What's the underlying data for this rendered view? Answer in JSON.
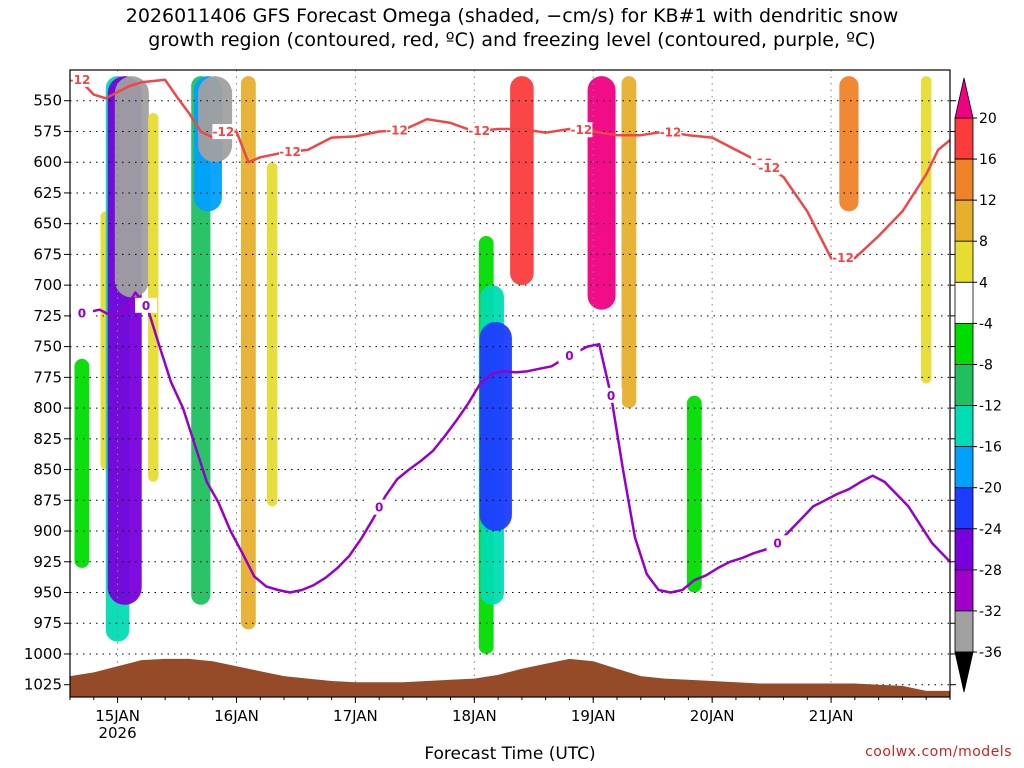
{
  "title_line1": "2026011406 GFS Forecast Omega (shaded, −cm/s) for KB#1 with dendritic snow",
  "title_line2": "growth region (contoured, red, ºC) and freezing level (contoured, purple, ºC)",
  "credit": "coolwx.com/models",
  "chart_data": {
    "type": "heatmap",
    "title": "2026011406 GFS Forecast Omega (shaded, −cm/s) for KB#1 with dendritic snow growth region (contoured, red, ºC) and freezing level (contoured, purple, ºC)",
    "xlabel": "Forecast Time (UTC)",
    "ylabel": "",
    "xlim_hours": [
      -4,
      70
    ],
    "ylim_hpa": [
      1035,
      525
    ],
    "x_ticks": [
      {
        "hour": 0,
        "label": "15JAN",
        "sub": "2026"
      },
      {
        "hour": 10,
        "label": "16JAN",
        "sub": ""
      },
      {
        "hour": 20,
        "label": "17JAN",
        "sub": ""
      },
      {
        "hour": 30,
        "label": "18JAN",
        "sub": ""
      },
      {
        "hour": 40,
        "label": "19JAN",
        "sub": ""
      },
      {
        "hour": 50,
        "label": "20JAN",
        "sub": ""
      },
      {
        "hour": 60,
        "label": "21JAN",
        "sub": ""
      }
    ],
    "y_ticks": [
      550,
      575,
      600,
      625,
      650,
      675,
      700,
      725,
      750,
      775,
      800,
      825,
      850,
      875,
      900,
      925,
      950,
      975,
      1000,
      1025
    ],
    "colorbar": {
      "levels": [
        -36,
        -32,
        -28,
        -24,
        -20,
        -16,
        -12,
        -8,
        -4,
        4,
        8,
        12,
        16,
        20
      ],
      "labels": [
        "20",
        "16",
        "12",
        "8",
        "4",
        "-4",
        "-8",
        "-12",
        "-16",
        "-20",
        "-24",
        "-28",
        "-32",
        "-36"
      ],
      "colors": [
        "#000000",
        "#a0a0a0",
        "#a000c8",
        "#7800dc",
        "#1e3cff",
        "#00a0ff",
        "#00dcb4",
        "#20c060",
        "#00dc00",
        "#ffffff",
        "#e6dc32",
        "#e6af2d",
        "#f08228",
        "#fa3c3c",
        "#f00082"
      ],
      "extend": "both"
    },
    "shaded_features": [
      {
        "hour": -3.0,
        "top": 760,
        "bottom": 930,
        "value": -8
      },
      {
        "hour": -1.0,
        "top": 640,
        "bottom": 850,
        "value": 4
      },
      {
        "hour": 0.0,
        "top": 530,
        "bottom": 990,
        "value": -16
      },
      {
        "hour": 0.6,
        "top": 530,
        "bottom": 960,
        "value": -28
      },
      {
        "hour": 1.2,
        "top": 530,
        "bottom": 710,
        "value": -36
      },
      {
        "hour": 3.0,
        "top": 560,
        "bottom": 860,
        "value": 4
      },
      {
        "hour": 7.0,
        "top": 530,
        "bottom": 960,
        "value": -12
      },
      {
        "hour": 7.6,
        "top": 530,
        "bottom": 640,
        "value": -20
      },
      {
        "hour": 8.2,
        "top": 530,
        "bottom": 600,
        "value": -36
      },
      {
        "hour": 11.0,
        "top": 530,
        "bottom": 980,
        "value": 8
      },
      {
        "hour": 13.0,
        "top": 600,
        "bottom": 880,
        "value": 4
      },
      {
        "hour": 31.0,
        "top": 660,
        "bottom": 1000,
        "value": -8
      },
      {
        "hour": 31.5,
        "top": 700,
        "bottom": 960,
        "value": -16
      },
      {
        "hour": 31.8,
        "top": 730,
        "bottom": 900,
        "value": -24
      },
      {
        "hour": 34.0,
        "top": 530,
        "bottom": 700,
        "value": 16
      },
      {
        "hour": 40.7,
        "top": 530,
        "bottom": 720,
        "value": 20
      },
      {
        "hour": 43.0,
        "top": 530,
        "bottom": 800,
        "value": 8
      },
      {
        "hour": 48.5,
        "top": 790,
        "bottom": 950,
        "value": -8
      },
      {
        "hour": 61.5,
        "top": 530,
        "bottom": 640,
        "value": 12
      },
      {
        "hour": 68.0,
        "top": 530,
        "bottom": 780,
        "value": 4
      }
    ],
    "series": [
      {
        "name": "dendritic growth region",
        "value": -12,
        "color": "#f04646",
        "x": [
          -4,
          -3.2,
          -2.0,
          -1.0,
          0.0,
          1.0,
          2.0,
          4.0,
          5.0,
          6.0,
          7.0,
          8.0,
          9.0,
          10.0,
          11.0,
          12.0,
          14.0,
          16.0,
          18.0,
          20.0,
          22.0,
          24.0,
          26.0,
          28.0,
          30.0,
          32.0,
          34.0,
          36.0,
          38.0,
          40.0,
          42.0,
          44.0,
          46.0,
          48.0,
          50.0,
          52.0,
          54.0,
          56.0,
          58.0,
          60.0,
          62.0,
          64.0,
          66.0,
          68.0,
          69.0,
          70.0
        ],
        "y": [
          533,
          533,
          545,
          548,
          543,
          538,
          535,
          533,
          547,
          560,
          575,
          580,
          575,
          575,
          600,
          596,
          592,
          590,
          580,
          579,
          575,
          574,
          565,
          568,
          575,
          573,
          573,
          576,
          573,
          575,
          578,
          578,
          575,
          578,
          580,
          590,
          600,
          612,
          640,
          678,
          678,
          660,
          640,
          610,
          590,
          582
        ],
        "labels_at_hours": [
          -3.2,
          8.9,
          14.5,
          23.5,
          30.4,
          39.0,
          46.5,
          54.2,
          54.8,
          61.0
        ]
      },
      {
        "name": "freezing level",
        "value": 0,
        "color": "#9600c8",
        "x": [
          -4,
          -3.5,
          -2.5,
          -1.5,
          -0.5,
          0.5,
          1.5,
          2.5,
          3.5,
          4.5,
          5.5,
          6.5,
          7.5,
          8.5,
          9.5,
          10.5,
          11.5,
          12.5,
          13.5,
          14.5,
          15.5,
          16.5,
          17.5,
          18.5,
          19.5,
          20.5,
          21.5,
          22.5,
          23.5,
          24.5,
          25.5,
          26.5,
          27.5,
          28.5,
          29.5,
          30.5,
          31.5,
          32.5,
          33.5,
          34.5,
          35.5,
          36.5,
          37.5,
          38.5,
          39.5,
          40.5,
          41.5,
          42.5,
          43.5,
          44.5,
          45.5,
          46.5,
          47.5,
          48.5,
          49.5,
          50.5,
          51.5,
          52.5,
          53.5,
          54.5,
          55.5,
          56.5,
          57.5,
          58.5,
          59.5,
          60.5,
          61.5,
          62.5,
          63.5,
          64.5,
          65.5,
          66.5,
          67.5,
          68.5,
          69.5,
          70.0
        ],
        "y": [
          725,
          724,
          722,
          720,
          725,
          722,
          706,
          718,
          749,
          779,
          800,
          830,
          860,
          877,
          900,
          918,
          937,
          945,
          948,
          950,
          948,
          944,
          938,
          930,
          920,
          906,
          890,
          872,
          858,
          850,
          843,
          835,
          823,
          810,
          796,
          780,
          772,
          770,
          771,
          770,
          768,
          766,
          760,
          755,
          750,
          748,
          790,
          850,
          905,
          935,
          948,
          950,
          948,
          940,
          936,
          930,
          925,
          922,
          918,
          915,
          910,
          900,
          890,
          880,
          875,
          870,
          866,
          860,
          855,
          860,
          870,
          880,
          895,
          910,
          920,
          925
        ],
        "labels_at_hours": [
          -3.0,
          2.4,
          22.0,
          38.0,
          41.5,
          55.5
        ]
      }
    ],
    "terrain": {
      "color": "#964b28",
      "x": [
        -4,
        -2,
        0,
        2,
        4,
        6,
        8,
        10,
        12,
        14,
        16,
        18,
        20,
        22,
        24,
        26,
        28,
        30,
        32,
        34,
        36,
        38,
        40,
        42,
        44,
        46,
        48,
        50,
        52,
        54,
        56,
        58,
        60,
        62,
        64,
        66,
        68,
        70
      ],
      "surface_hpa": [
        1018,
        1015,
        1010,
        1005,
        1004,
        1004,
        1006,
        1010,
        1014,
        1018,
        1020,
        1022,
        1023,
        1023,
        1023,
        1022,
        1021,
        1020,
        1017,
        1012,
        1008,
        1004,
        1006,
        1012,
        1018,
        1020,
        1021,
        1022,
        1023,
        1024,
        1024,
        1024,
        1024,
        1024,
        1025,
        1026,
        1030,
        1030
      ]
    }
  }
}
